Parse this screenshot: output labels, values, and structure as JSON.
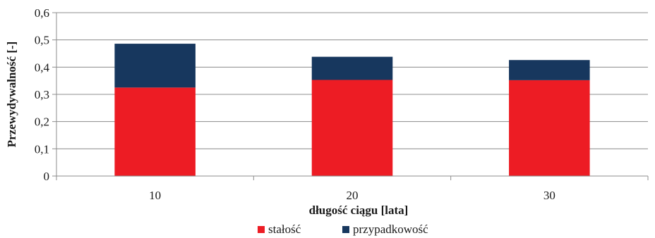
{
  "chart_data": {
    "type": "bar",
    "stacked": true,
    "categories": [
      "10",
      "20",
      "30"
    ],
    "series": [
      {
        "name": "stałość",
        "values": [
          0.325,
          0.353,
          0.352
        ],
        "color": "#ed1c24"
      },
      {
        "name": "przypadkowość",
        "values": [
          0.161,
          0.085,
          0.074
        ],
        "color": "#17375e"
      }
    ],
    "ylim": [
      0,
      0.6
    ],
    "yticks": [
      "0",
      "0,1",
      "0,2",
      "0,3",
      "0,4",
      "0,5",
      "0,6"
    ],
    "xlabel": "długość ciągu [lata]",
    "ylabel": "Przewydywalność [-]",
    "grid": true,
    "legend_position": "bottom"
  }
}
